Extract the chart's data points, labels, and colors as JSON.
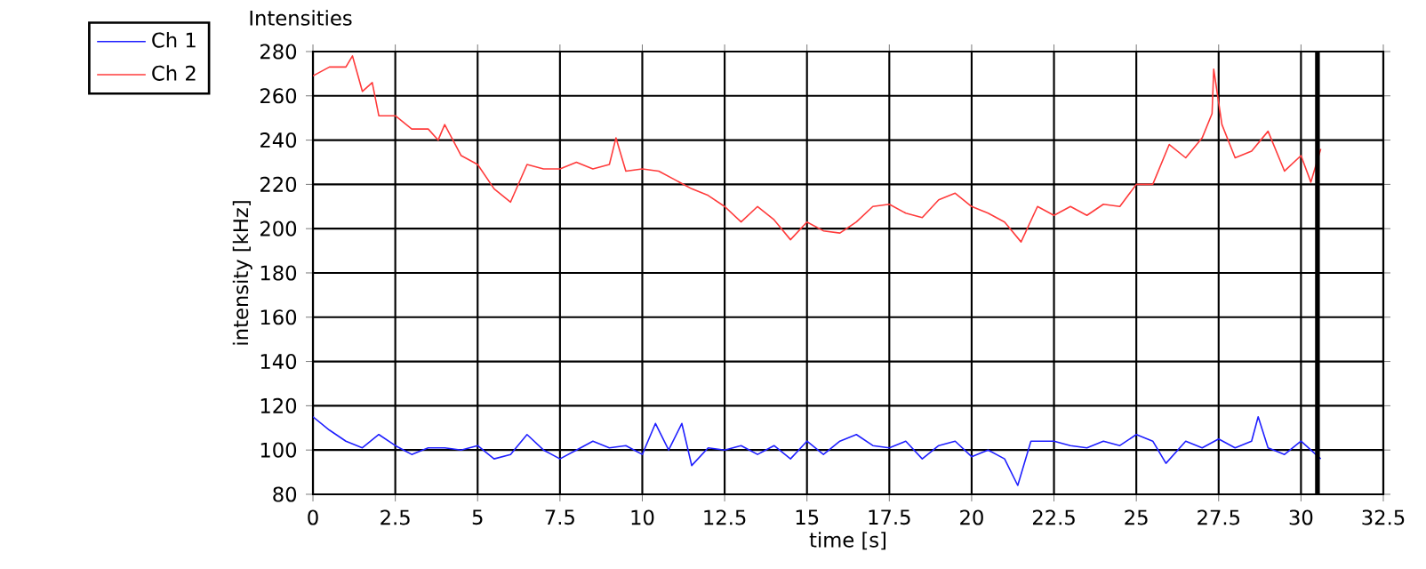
{
  "chart_data": {
    "type": "line",
    "title": "Intensities",
    "xlabel": "time [s]",
    "ylabel": "intensity [kHz]",
    "xlim": [
      0,
      32.5
    ],
    "xticks": [
      0,
      2.5,
      5,
      7.5,
      10,
      12.5,
      15,
      17.5,
      20,
      22.5,
      25,
      27.5,
      30,
      32.5
    ],
    "ylim": [
      80,
      280
    ],
    "yticks": [
      80,
      100,
      120,
      140,
      160,
      180,
      200,
      220,
      240,
      260,
      280
    ],
    "grid": true,
    "legend": "top left",
    "marker": "none",
    "line_style": "solid",
    "ref_lines": [
      {
        "axis": "x",
        "value": 30.5,
        "color": "#000000"
      }
    ],
    "series": [
      {
        "name": "Ch 1",
        "color": "#1f1fff",
        "x": [
          0,
          0.5,
          1,
          1.5,
          2,
          2.5,
          3,
          3.5,
          4,
          4.5,
          5,
          5.5,
          6,
          6.5,
          7,
          7.5,
          8,
          8.5,
          9,
          9.5,
          10,
          10.4,
          10.8,
          11.2,
          11.5,
          12,
          12.5,
          13,
          13.5,
          14,
          14.5,
          15,
          15.5,
          16,
          16.5,
          17,
          17.5,
          18,
          18.5,
          19,
          19.5,
          20,
          20.5,
          21,
          21.4,
          21.8,
          22.5,
          23,
          23.5,
          24,
          24.5,
          25,
          25.5,
          25.9,
          26.5,
          27,
          27.5,
          28,
          28.5,
          28.7,
          29,
          29.5,
          30,
          30.6
        ],
        "values": [
          115,
          109,
          104,
          101,
          107,
          102,
          98,
          101,
          101,
          100,
          102,
          96,
          98,
          107,
          100,
          96,
          100,
          104,
          101,
          102,
          98,
          112,
          100,
          112,
          93,
          101,
          100,
          102,
          98,
          102,
          96,
          104,
          98,
          104,
          107,
          102,
          101,
          104,
          96,
          102,
          104,
          97,
          100,
          96,
          84,
          104,
          104,
          102,
          101,
          104,
          102,
          107,
          104,
          94,
          104,
          101,
          105,
          101,
          104,
          115,
          101,
          98,
          104,
          96
        ]
      },
      {
        "name": "Ch 2",
        "color": "#ff3b3b",
        "x": [
          0,
          0.5,
          1,
          1.2,
          1.5,
          1.8,
          2,
          2.5,
          3,
          3.5,
          3.8,
          4,
          4.5,
          5,
          5.5,
          6,
          6.5,
          7,
          7.5,
          8,
          8.5,
          9,
          9.2,
          9.5,
          10,
          10.5,
          11,
          11.5,
          12,
          12.5,
          13,
          13.5,
          14,
          14.5,
          15,
          15.5,
          16,
          16.5,
          17,
          17.5,
          18,
          18.5,
          19,
          19.5,
          20,
          20.5,
          21,
          21.5,
          22,
          22.5,
          23,
          23.5,
          24,
          24.5,
          25,
          25.5,
          26,
          26.5,
          27,
          27.3,
          27.35,
          27.6,
          28,
          28.5,
          29,
          29.5,
          30,
          30.3,
          30.6
        ],
        "values": [
          269,
          273,
          273,
          278,
          262,
          266,
          251,
          251,
          245,
          245,
          240,
          247,
          233,
          229,
          218,
          212,
          229,
          227,
          227,
          230,
          227,
          229,
          241,
          226,
          227,
          226,
          222,
          218,
          215,
          210,
          203,
          210,
          204,
          195,
          203,
          199,
          198,
          203,
          210,
          211,
          207,
          205,
          213,
          216,
          210,
          207,
          203,
          194,
          210,
          206,
          210,
          206,
          211,
          210,
          220,
          220,
          238,
          232,
          241,
          252,
          272,
          247,
          232,
          235,
          244,
          226,
          233,
          221,
          236
        ]
      }
    ]
  }
}
